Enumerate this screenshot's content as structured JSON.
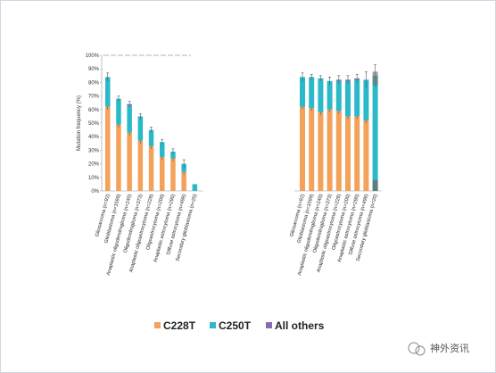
{
  "colors": {
    "c228t": "#f4a15a",
    "c250t": "#2bb9c9",
    "others": "#8b6bb0",
    "error": "#555555"
  },
  "legend": [
    {
      "label": "C228T",
      "color": "#f4a15a"
    },
    {
      "label": "C250T",
      "color": "#2bb9c9"
    },
    {
      "label": "All others",
      "color": "#8b6bb0"
    }
  ],
  "watermark": {
    "text": "神外资讯"
  },
  "chart_data": [
    {
      "type": "bar",
      "stacked": true,
      "ylabel": "Mutation frequency (%)",
      "ylim": [
        0,
        100
      ],
      "yticks": [
        "0%",
        "10%",
        "20%",
        "30%",
        "40%",
        "50%",
        "60%",
        "70%",
        "80%",
        "90%",
        "100%"
      ],
      "grid": false,
      "categories": [
        "Gliosarcoma (n=92)",
        "Glioblastoma (n=1599)",
        "Anaplastic oligodendroglioma (n=240)",
        "Oligodendroglioma (n=373)",
        "Anaplastic oligoastrocytoma (n=228)",
        "Oligoastrocytoma (n=200)",
        "Anaplastic astrocytoma (n=290)",
        "Diffuse astrocytoma (n=498)",
        "Secondary glioblastoma (n=20)"
      ],
      "series": [
        {
          "name": "C228T",
          "values": [
            62,
            49,
            43,
            37,
            33,
            25,
            24,
            14,
            0
          ]
        },
        {
          "name": "C250T",
          "values": [
            22,
            19,
            20,
            18,
            12,
            11,
            5,
            6,
            5
          ]
        },
        {
          "name": "All others",
          "values": [
            0,
            0,
            1,
            0,
            0,
            0,
            0,
            0,
            0
          ]
        }
      ],
      "error": [
        3,
        2,
        2,
        2,
        2,
        2,
        2,
        3,
        0
      ]
    },
    {
      "type": "bar",
      "stacked": true,
      "ylim": [
        0,
        100
      ],
      "grid": false,
      "categories": [
        "Gliosarcoma (n=92)",
        "Glioblastoma (n=1599)",
        "Anaplastic oligodendroglioma (n=240)",
        "Oligodendroglioma (n=373)",
        "Anaplastic oligoastrocytoma (n=228)",
        "Oligoastrocytoma (n=200)",
        "Anaplastic astrocytoma (n=290)",
        "Diffuse astrocytoma (n=498)",
        "Secondary glioblastoma (n=20)"
      ],
      "series": [
        {
          "name": "C228T",
          "values": [
            62,
            61,
            58,
            60,
            59,
            55,
            55,
            52,
            0
          ]
        },
        {
          "name": "C250T",
          "values": [
            22,
            23,
            25,
            21,
            22,
            26,
            27,
            30,
            85
          ]
        },
        {
          "name": "All others",
          "values": [
            0,
            0,
            0,
            0,
            1,
            1,
            1,
            0,
            0
          ]
        }
      ],
      "error": [
        3,
        2,
        2,
        3,
        3,
        3,
        3,
        6,
        8
      ]
    }
  ]
}
